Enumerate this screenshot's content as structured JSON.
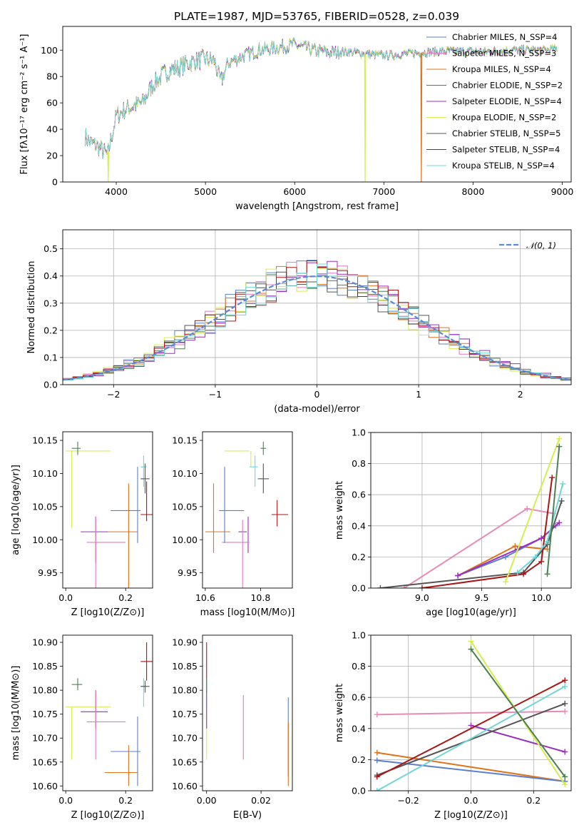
{
  "title": "PLATE=1987, MJD=53765, FIBERID=0528, z=0.039",
  "colors": {
    "chabrier_miles": "#5b7fcf",
    "salpeter_miles": "#e07ac4",
    "kroupa_miles": "#e0731a",
    "chabrier_elodie": "#4e7f50",
    "salpeter_elodie": "#9a2fbf",
    "kroupa_elodie": "#d6ec50",
    "chabrier_stelib": "#555555",
    "salpeter_stelib": "#aa1515",
    "kroupa_stelib": "#6fd6d6",
    "salpeter_weight_line": "#e68ab8",
    "normal_curve": "#5b8ad6",
    "grid": "#b0b0b0"
  },
  "chart_data": [
    {
      "id": "spectrum",
      "type": "line",
      "xlabel": "wavelength [Angstrom, rest frame]",
      "ylabel": "Flux [fλ10⁻¹⁷ erg cm⁻² s⁻¹ A⁻¹]",
      "xlim": [
        3400,
        9100
      ],
      "ylim": [
        0,
        118
      ],
      "xticks": [
        4000,
        5000,
        6000,
        7000,
        8000,
        9000
      ],
      "yticks": [
        0,
        20,
        40,
        60,
        80,
        100
      ],
      "grid": false,
      "legend_position": "top-right",
      "legend": [
        "Chabrier MILES, N_SSP=4",
        "Salpeter MILES, N_SSP=3",
        "Kroupa MILES, N_SSP=4",
        "Chabrier ELODIE, N_SSP=2",
        "Salpeter ELODIE, N_SSP=4",
        "Kroupa ELODIE, N_SSP=2",
        "Chabrier STELIB, N_SSP=5",
        "Salpeter STELIB, N_SSP=4",
        "Kroupa STELIB, N_SSP=4"
      ],
      "continuum": {
        "x": [
          3650,
          3700,
          3800,
          3900,
          3950,
          4000,
          4100,
          4200,
          4300,
          4400,
          4500,
          4600,
          4700,
          4800,
          4900,
          5000,
          5100,
          5170,
          5250,
          5400,
          5600,
          5800,
          6000,
          6200,
          6400,
          6600,
          6800,
          7000,
          7200,
          7400,
          7600,
          7800,
          8000,
          8200,
          8400,
          8600,
          8800,
          8950
        ],
        "y": [
          35,
          30,
          27,
          20,
          35,
          50,
          55,
          58,
          60,
          73,
          80,
          85,
          87,
          90,
          92,
          93,
          92,
          75,
          90,
          95,
          100,
          102,
          104,
          100,
          98,
          99,
          97,
          96,
          97,
          98,
          99,
          99,
          99,
          99,
          100,
          100,
          100,
          101
        ]
      },
      "drops": [
        {
          "series": "Kroupa ELODIE",
          "x": 3910
        },
        {
          "series": "Kroupa ELODIE",
          "x": 6790
        },
        {
          "series": "Kroupa MILES",
          "x": 7420
        }
      ]
    },
    {
      "id": "residuals",
      "type": "step",
      "xlabel": "(data-model)/error",
      "ylabel": "Normed distribution",
      "xlim": [
        -2.5,
        2.5
      ],
      "ylim": [
        0,
        0.57
      ],
      "xticks": [
        -2,
        -1,
        0,
        1,
        2
      ],
      "yticks": [
        0.0,
        0.1,
        0.2,
        0.3,
        0.4,
        0.5
      ],
      "grid": true,
      "legend_position": "top-right",
      "legend": [
        "𝒩(0, 1)"
      ]
    },
    {
      "id": "age_vs_Z",
      "type": "errorbar",
      "xlabel": "Z [log10(Z/Z⊙)]",
      "ylabel": "age  [log10(age/yr)]",
      "xlim": [
        -0.01,
        0.29
      ],
      "ylim": [
        9.927,
        10.163
      ],
      "xticks": [
        0.0,
        0.2
      ],
      "yticks": [
        9.95,
        10.0,
        10.05,
        10.1,
        10.15
      ],
      "points": [
        {
          "s": "kroupa_elodie",
          "x": 0.02,
          "y": 10.134,
          "xerr": [
            0.0,
            0.15
          ],
          "yerr": [
            10.018,
            10.134
          ]
        },
        {
          "s": "chabrier_elodie",
          "x": 0.04,
          "y": 10.138,
          "xerr": [
            0.02,
            0.05
          ],
          "yerr": [
            10.128,
            10.148
          ]
        },
        {
          "s": "salpeter_elodie",
          "x": 0.1,
          "y": 10.012,
          "xerr": [
            0.05,
            0.14
          ],
          "yerr": [
            9.965,
            10.035
          ]
        },
        {
          "s": "salpeter_miles",
          "x": 0.1,
          "y": 9.996,
          "xerr": [
            0.07,
            0.2
          ],
          "yerr": [
            9.925,
            10.035
          ]
        },
        {
          "s": "kroupa_miles",
          "x": 0.21,
          "y": 10.012,
          "xerr": [
            0.14,
            0.24
          ],
          "yerr": [
            9.925,
            10.085
          ]
        },
        {
          "s": "chabrier_miles",
          "x": 0.24,
          "y": 10.044,
          "xerr": [
            0.15,
            0.25
          ],
          "yerr": [
            9.995,
            10.11
          ]
        },
        {
          "s": "kroupa_stelib",
          "x": 0.26,
          "y": 10.11,
          "xerr": [
            0.25,
            0.27
          ],
          "yerr": [
            10.08,
            10.127
          ]
        },
        {
          "s": "chabrier_stelib",
          "x": 0.265,
          "y": 10.092,
          "xerr": [
            0.25,
            0.28
          ],
          "yerr": [
            10.07,
            10.115
          ]
        },
        {
          "s": "salpeter_stelib",
          "x": 0.27,
          "y": 10.038,
          "xerr": [
            0.25,
            0.29
          ],
          "yerr": [
            10.028,
            10.088
          ]
        }
      ]
    },
    {
      "id": "age_vs_mass",
      "type": "errorbar",
      "xlabel": "mass [log10(M/M⊙)]",
      "ylabel": "",
      "xlim": [
        10.59,
        10.915
      ],
      "ylim": [
        9.927,
        10.163
      ],
      "xticks": [
        10.6,
        10.8
      ],
      "yticks": [
        9.95,
        10.0,
        10.05,
        10.1,
        10.15
      ],
      "points": [
        {
          "s": "kroupa_elodie",
          "x": 10.765,
          "y": 10.134,
          "xerr": [
            10.67,
            10.76
          ],
          "yerr": [
            10.11,
            10.134
          ]
        },
        {
          "s": "chabrier_elodie",
          "x": 10.81,
          "y": 10.138,
          "xerr": [
            10.8,
            10.82
          ],
          "yerr": [
            10.128,
            10.148
          ]
        },
        {
          "s": "salpeter_elodie",
          "x": 10.755,
          "y": 10.012,
          "xerr": [
            10.72,
            10.75
          ],
          "yerr": [
            9.98,
            10.035
          ]
        },
        {
          "s": "salpeter_miles",
          "x": 10.735,
          "y": 9.996,
          "xerr": [
            10.66,
            10.76
          ],
          "yerr": [
            9.925,
            10.03
          ]
        },
        {
          "s": "kroupa_miles",
          "x": 10.63,
          "y": 10.012,
          "xerr": [
            10.6,
            10.69
          ],
          "yerr": [
            9.98,
            10.085
          ]
        },
        {
          "s": "chabrier_miles",
          "x": 10.67,
          "y": 10.044,
          "xerr": [
            10.65,
            10.74
          ],
          "yerr": [
            9.995,
            10.11
          ]
        },
        {
          "s": "kroupa_stelib",
          "x": 10.78,
          "y": 10.11,
          "xerr": [
            10.76,
            10.79
          ],
          "yerr": [
            10.08,
            10.127
          ]
        },
        {
          "s": "chabrier_stelib",
          "x": 10.81,
          "y": 10.092,
          "xerr": [
            10.79,
            10.83
          ],
          "yerr": [
            10.07,
            10.115
          ]
        },
        {
          "s": "salpeter_stelib",
          "x": 10.86,
          "y": 10.038,
          "xerr": [
            10.84,
            10.9
          ],
          "yerr": [
            10.02,
            10.06
          ]
        }
      ]
    },
    {
      "id": "weight_vs_age",
      "type": "line",
      "xlabel": "age  [log10(age/yr)]",
      "ylabel": "mass weight",
      "xlim": [
        8.57,
        10.25
      ],
      "ylim": [
        0,
        1
      ],
      "xticks": [
        9.0,
        9.5,
        10.0
      ],
      "yticks": [
        0.0,
        0.2,
        0.4,
        0.6,
        0.8,
        1.0
      ],
      "grid": true,
      "series": [
        {
          "s": "salpeter_weight_line",
          "x": [
            8.85,
            9.88,
            10.1
          ],
          "y": [
            0.0,
            0.51,
            0.48
          ]
        },
        {
          "s": "kroupa_miles",
          "x": [
            9.3,
            9.78,
            10.05
          ],
          "y": [
            0.08,
            0.27,
            0.25
          ]
        },
        {
          "s": "chabrier_miles",
          "x": [
            9.3,
            9.7,
            10.0,
            10.12
          ],
          "y": [
            0.08,
            0.2,
            0.32,
            0.4
          ]
        },
        {
          "s": "salpeter_elodie",
          "x": [
            9.3,
            9.8,
            10.0,
            10.15
          ],
          "y": [
            0.08,
            0.25,
            0.32,
            0.42
          ]
        },
        {
          "s": "chabrier_stelib",
          "x": [
            8.65,
            9.85,
            10.05,
            10.17
          ],
          "y": [
            0.0,
            0.1,
            0.28,
            0.56
          ]
        },
        {
          "s": "salpeter_stelib",
          "x": [
            9.0,
            9.85,
            10.0,
            10.09
          ],
          "y": [
            0.0,
            0.09,
            0.17,
            0.71
          ]
        },
        {
          "s": "kroupa_stelib",
          "x": [
            9.8,
            9.95,
            10.05,
            10.18
          ],
          "y": [
            0.1,
            0.2,
            0.3,
            0.67
          ]
        },
        {
          "s": "kroupa_elodie",
          "x": [
            9.7,
            10.15
          ],
          "y": [
            0.04,
            0.96
          ]
        },
        {
          "s": "chabrier_elodie",
          "x": [
            10.05,
            10.15
          ],
          "y": [
            0.09,
            0.91
          ]
        }
      ]
    },
    {
      "id": "mass_vs_Z",
      "type": "errorbar",
      "xlabel": "Z [log10(Z/Z⊙)]",
      "ylabel": "mass [log10(M/M⊙)]",
      "xlim": [
        -0.01,
        0.29
      ],
      "ylim": [
        10.59,
        10.915
      ],
      "xticks": [
        0.0,
        0.2
      ],
      "yticks": [
        10.6,
        10.65,
        10.7,
        10.75,
        10.8,
        10.85,
        10.9
      ],
      "points": [
        {
          "s": "kroupa_elodie",
          "x": 0.02,
          "y": 10.765,
          "xerr": [
            0.0,
            0.15
          ],
          "yerr": [
            10.655,
            10.765
          ]
        },
        {
          "s": "chabrier_elodie",
          "x": 0.04,
          "y": 10.812,
          "xerr": [
            0.02,
            0.055
          ],
          "yerr": [
            10.8,
            10.825
          ]
        },
        {
          "s": "salpeter_elodie",
          "x": 0.1,
          "y": 10.755,
          "xerr": [
            0.05,
            0.14
          ],
          "yerr": [
            10.72,
            10.8
          ]
        },
        {
          "s": "salpeter_miles",
          "x": 0.1,
          "y": 10.734,
          "xerr": [
            0.07,
            0.2
          ],
          "yerr": [
            10.655,
            10.8
          ]
        },
        {
          "s": "kroupa_miles",
          "x": 0.21,
          "y": 10.628,
          "xerr": [
            0.13,
            0.24
          ],
          "yerr": [
            10.6,
            10.685
          ]
        },
        {
          "s": "chabrier_miles",
          "x": 0.24,
          "y": 10.672,
          "xerr": [
            0.15,
            0.25
          ],
          "yerr": [
            10.6,
            10.745
          ]
        },
        {
          "s": "kroupa_stelib",
          "x": 0.26,
          "y": 10.808,
          "xerr": [
            0.25,
            0.27
          ],
          "yerr": [
            10.765,
            10.825
          ]
        },
        {
          "s": "chabrier_stelib",
          "x": 0.265,
          "y": 10.808,
          "xerr": [
            0.25,
            0.28
          ],
          "yerr": [
            10.795,
            10.82
          ]
        },
        {
          "s": "salpeter_stelib",
          "x": 0.27,
          "y": 10.86,
          "xerr": [
            0.25,
            0.29
          ],
          "yerr": [
            10.82,
            10.9
          ]
        }
      ]
    },
    {
      "id": "mass_vs_ebv",
      "type": "errorbar",
      "xlabel": "E(B-V)",
      "ylabel": "",
      "xlim": [
        -0.0015,
        0.0315
      ],
      "ylim": [
        10.59,
        10.915
      ],
      "xticks": [
        0.0,
        0.02
      ],
      "yticks": [
        10.6,
        10.65,
        10.7,
        10.75,
        10.8,
        10.85,
        10.9
      ],
      "points": [
        {
          "s": "salpeter_stelib",
          "x": 0.0,
          "y": 10.86,
          "yerr": [
            10.82,
            10.9
          ]
        },
        {
          "s": "chabrier_stelib",
          "x": 0.0,
          "y": 10.808,
          "yerr": [
            10.795,
            10.82
          ]
        },
        {
          "s": "kroupa_stelib",
          "x": 0.0,
          "y": 10.808,
          "yerr": [
            10.765,
            10.825
          ]
        },
        {
          "s": "chabrier_elodie",
          "x": 0.0,
          "y": 10.812,
          "yerr": [
            10.8,
            10.825
          ]
        },
        {
          "s": "kroupa_elodie",
          "x": 0.0,
          "y": 10.765,
          "yerr": [
            10.655,
            10.765
          ]
        },
        {
          "s": "salpeter_elodie",
          "x": 0.0,
          "y": 10.755,
          "yerr": [
            10.72,
            10.8
          ]
        },
        {
          "s": "salpeter_miles",
          "x": 0.0135,
          "y": 10.734,
          "yerr": [
            10.655,
            10.79
          ]
        },
        {
          "s": "chabrier_miles",
          "x": 0.03,
          "y": 10.672,
          "yerr": [
            10.62,
            10.785
          ]
        },
        {
          "s": "kroupa_miles",
          "x": 0.03,
          "y": 10.628,
          "yerr": [
            10.6,
            10.735
          ]
        }
      ]
    },
    {
      "id": "weight_vs_Z",
      "type": "line",
      "xlabel": "Z [log10(Z/Z⊙)]",
      "ylabel": "mass weight",
      "xlim": [
        -0.32,
        0.32
      ],
      "ylim": [
        0,
        1
      ],
      "xticks": [
        -0.2,
        0.0,
        0.2
      ],
      "yticks": [
        0.0,
        0.2,
        0.4,
        0.6,
        0.8,
        1.0
      ],
      "grid": true,
      "series": [
        {
          "s": "salpeter_weight_line",
          "x": [
            -0.3,
            0.3
          ],
          "y": [
            0.49,
            0.51
          ]
        },
        {
          "s": "kroupa_miles",
          "x": [
            -0.3,
            0.3
          ],
          "y": [
            0.245,
            0.06
          ]
        },
        {
          "s": "chabrier_miles",
          "x": [
            -0.3,
            0.3
          ],
          "y": [
            0.195,
            0.06
          ]
        },
        {
          "s": "salpeter_elodie",
          "x": [
            0.0,
            0.3
          ],
          "y": [
            0.42,
            0.25
          ]
        },
        {
          "s": "chabrier_stelib",
          "x": [
            -0.3,
            0.3
          ],
          "y": [
            0.1,
            0.56
          ]
        },
        {
          "s": "salpeter_stelib",
          "x": [
            -0.3,
            0.3
          ],
          "y": [
            0.09,
            0.71
          ]
        },
        {
          "s": "kroupa_stelib",
          "x": [
            -0.3,
            0.3
          ],
          "y": [
            0.0,
            0.67
          ]
        },
        {
          "s": "kroupa_elodie",
          "x": [
            0.0,
            0.3
          ],
          "y": [
            0.96,
            0.04
          ]
        },
        {
          "s": "chabrier_elodie",
          "x": [
            0.0,
            0.3
          ],
          "y": [
            0.91,
            0.09
          ]
        }
      ]
    }
  ]
}
